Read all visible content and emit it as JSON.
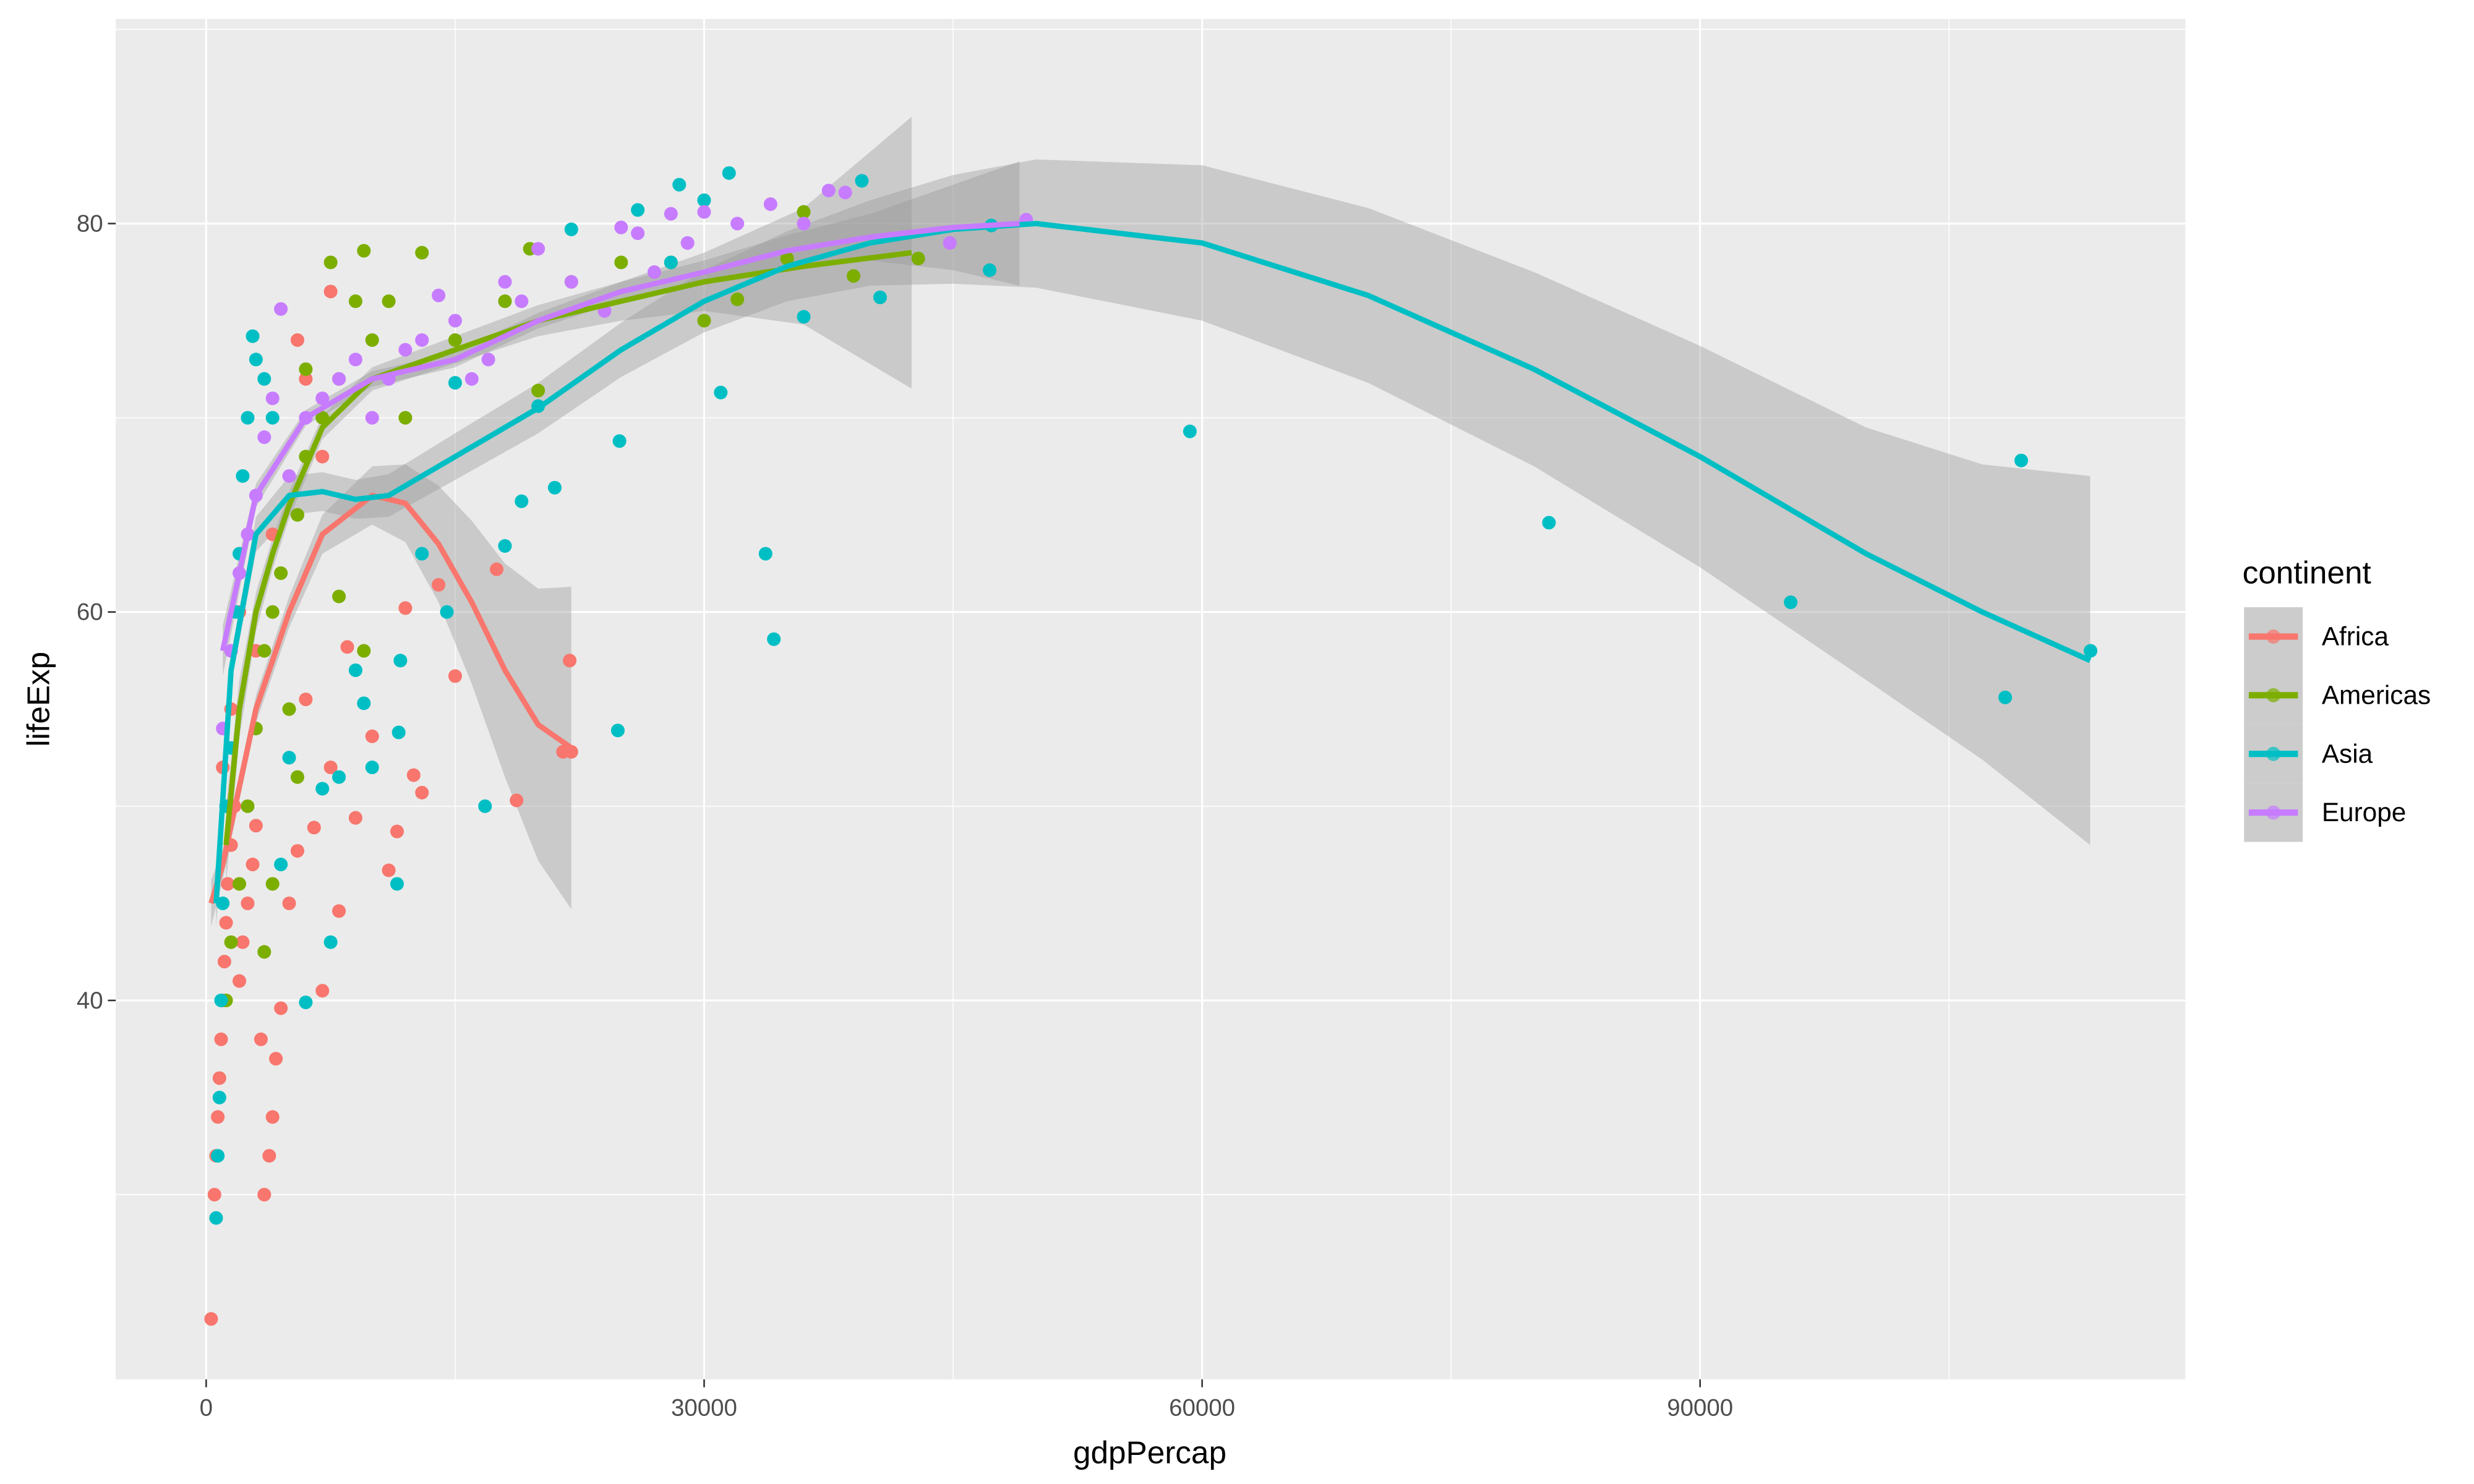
{
  "chart_data": {
    "type": "scatter",
    "title": "",
    "xlabel": "gdpPercap",
    "ylabel": "lifeExp",
    "xlim": [
      -5400,
      119000
    ],
    "ylim": [
      21.5,
      90.5
    ],
    "xticks": [
      0,
      30000,
      60000,
      90000
    ],
    "xtick_labels": [
      "0",
      "30000",
      "60000",
      "90000"
    ],
    "yticks": [
      40,
      60,
      80
    ],
    "ytick_labels": [
      "40",
      "60",
      "80"
    ],
    "grid": true,
    "legend": {
      "title": "continent",
      "placement": "right"
    },
    "series": [
      {
        "name": "Africa",
        "color": "#F8766D",
        "points": [
          [
            300,
            23.6
          ],
          [
            500,
            30
          ],
          [
            600,
            32
          ],
          [
            700,
            34
          ],
          [
            800,
            36
          ],
          [
            900,
            38
          ],
          [
            1000,
            40
          ],
          [
            1100,
            42
          ],
          [
            1200,
            44
          ],
          [
            1300,
            46
          ],
          [
            1500,
            48
          ],
          [
            1700,
            50
          ],
          [
            2000,
            41
          ],
          [
            2200,
            43
          ],
          [
            2500,
            45
          ],
          [
            2800,
            47
          ],
          [
            3000,
            49
          ],
          [
            3300,
            38
          ],
          [
            3500,
            30
          ],
          [
            3800,
            32
          ],
          [
            4000,
            34
          ],
          [
            4200,
            37
          ],
          [
            4500,
            39.6
          ],
          [
            5000,
            45
          ],
          [
            5500,
            47.7
          ],
          [
            6000,
            55.5
          ],
          [
            6500,
            48.9
          ],
          [
            7000,
            40.5
          ],
          [
            7500,
            52
          ],
          [
            8000,
            44.6
          ],
          [
            8500,
            58.2
          ],
          [
            9000,
            49.4
          ],
          [
            10000,
            53.6
          ],
          [
            11000,
            46.7
          ],
          [
            11500,
            48.7
          ],
          [
            12000,
            60.2
          ],
          [
            12500,
            51.6
          ],
          [
            13000,
            50.7
          ],
          [
            14000,
            61.4
          ],
          [
            15000,
            56.7
          ],
          [
            17500,
            62.2
          ],
          [
            18700,
            50.3
          ],
          [
            21500,
            52.8
          ],
          [
            21900,
            57.5
          ],
          [
            22000,
            52.8
          ],
          [
            6000,
            72
          ],
          [
            7500,
            76.5
          ],
          [
            5500,
            74
          ],
          [
            3000,
            58
          ],
          [
            2000,
            60
          ],
          [
            1500,
            55
          ],
          [
            1000,
            52
          ],
          [
            4000,
            64
          ],
          [
            7000,
            68
          ]
        ],
        "smooth": [
          [
            300,
            45
          ],
          [
            1000,
            47
          ],
          [
            2000,
            51
          ],
          [
            3000,
            55
          ],
          [
            5000,
            60
          ],
          [
            7000,
            64
          ],
          [
            10000,
            66
          ],
          [
            12000,
            65.6
          ],
          [
            14000,
            63.5
          ],
          [
            16000,
            60.5
          ],
          [
            18000,
            57
          ],
          [
            20000,
            54.2
          ],
          [
            22000,
            53
          ]
        ],
        "se": [
          1.2,
          0.8,
          0.7,
          0.7,
          0.8,
          1,
          1.5,
          2,
          3,
          4.2,
          5.5,
          7,
          8.3
        ]
      },
      {
        "name": "Americas",
        "color": "#7CAE00",
        "points": [
          [
            1200,
            40
          ],
          [
            1500,
            43
          ],
          [
            2000,
            46
          ],
          [
            2500,
            50
          ],
          [
            3000,
            54
          ],
          [
            3500,
            58
          ],
          [
            4000,
            60
          ],
          [
            4500,
            62
          ],
          [
            5000,
            55
          ],
          [
            5500,
            65
          ],
          [
            6000,
            68
          ],
          [
            7000,
            70
          ],
          [
            8000,
            72
          ],
          [
            9000,
            76
          ],
          [
            9500,
            78.6
          ],
          [
            10000,
            74
          ],
          [
            11000,
            76
          ],
          [
            12000,
            70
          ],
          [
            13000,
            78.5
          ],
          [
            15000,
            74
          ],
          [
            18000,
            76
          ],
          [
            19500,
            78.7
          ],
          [
            20000,
            71.4
          ],
          [
            22000,
            77
          ],
          [
            25000,
            78
          ],
          [
            28000,
            78
          ],
          [
            30000,
            75
          ],
          [
            32000,
            76.1
          ],
          [
            35000,
            78.2
          ],
          [
            36000,
            80.6
          ],
          [
            39000,
            77.3
          ],
          [
            42900,
            78.2
          ],
          [
            8000,
            60.8
          ],
          [
            9500,
            58
          ],
          [
            5500,
            51.5
          ],
          [
            4000,
            46
          ],
          [
            3500,
            42.5
          ],
          [
            6000,
            72.5
          ],
          [
            7500,
            78
          ]
        ],
        "smooth": [
          [
            1200,
            48
          ],
          [
            2000,
            55
          ],
          [
            3000,
            60
          ],
          [
            4000,
            63
          ],
          [
            5000,
            65.5
          ],
          [
            7000,
            69.5
          ],
          [
            10000,
            72
          ],
          [
            15000,
            73.5
          ],
          [
            20000,
            75
          ],
          [
            25000,
            76
          ],
          [
            30000,
            77
          ],
          [
            36000,
            77.8
          ],
          [
            42500,
            78.5
          ]
        ],
        "se": [
          2,
          1.5,
          1,
          0.8,
          0.7,
          0.6,
          0.6,
          0.7,
          0.8,
          1,
          1.5,
          3,
          7
        ]
      },
      {
        "name": "Asia",
        "color": "#00BFC4",
        "points": [
          [
            600,
            28.8
          ],
          [
            700,
            32
          ],
          [
            800,
            35
          ],
          [
            900,
            40
          ],
          [
            1000,
            45
          ],
          [
            1200,
            50
          ],
          [
            1500,
            53
          ],
          [
            1800,
            60
          ],
          [
            2000,
            63
          ],
          [
            2200,
            67
          ],
          [
            2500,
            70
          ],
          [
            2800,
            74.2
          ],
          [
            3000,
            73
          ],
          [
            3500,
            72
          ],
          [
            4000,
            70
          ],
          [
            4500,
            47
          ],
          [
            5000,
            52.5
          ],
          [
            6000,
            39.9
          ],
          [
            7000,
            50.9
          ],
          [
            7500,
            43
          ],
          [
            8000,
            51.5
          ],
          [
            9000,
            57
          ],
          [
            9500,
            55.3
          ],
          [
            10000,
            52
          ],
          [
            11500,
            46
          ],
          [
            11600,
            53.8
          ],
          [
            11700,
            57.5
          ],
          [
            13000,
            63
          ],
          [
            14500,
            60
          ],
          [
            15000,
            71.8
          ],
          [
            16800,
            50
          ],
          [
            18000,
            63.4
          ],
          [
            19000,
            65.7
          ],
          [
            20000,
            70.6
          ],
          [
            21000,
            66.4
          ],
          [
            22000,
            79.7
          ],
          [
            24800,
            53.9
          ],
          [
            24900,
            68.8
          ],
          [
            26000,
            80.7
          ],
          [
            28000,
            78
          ],
          [
            28500,
            82
          ],
          [
            30000,
            81.2
          ],
          [
            31000,
            71.3
          ],
          [
            31500,
            82.6
          ],
          [
            33700,
            63
          ],
          [
            34200,
            58.6
          ],
          [
            36000,
            75.2
          ],
          [
            39500,
            82.2
          ],
          [
            40600,
            76.2
          ],
          [
            47300,
            79.9
          ],
          [
            47200,
            77.6
          ],
          [
            59265,
            69.3
          ],
          [
            80895,
            64.6
          ],
          [
            95458,
            60.5
          ],
          [
            108382,
            55.6
          ],
          [
            109348,
            67.8
          ],
          [
            113523,
            58
          ]
        ],
        "smooth": [
          [
            600,
            45
          ],
          [
            1500,
            57
          ],
          [
            3000,
            64
          ],
          [
            5000,
            66
          ],
          [
            7000,
            66.2
          ],
          [
            9000,
            65.8
          ],
          [
            11000,
            66
          ],
          [
            15000,
            68
          ],
          [
            20000,
            70.5
          ],
          [
            25000,
            73.5
          ],
          [
            30000,
            76
          ],
          [
            35000,
            77.8
          ],
          [
            40000,
            79
          ],
          [
            45000,
            79.7
          ],
          [
            50000,
            80
          ],
          [
            60000,
            79
          ],
          [
            70000,
            76.3
          ],
          [
            80000,
            72.5
          ],
          [
            90000,
            68
          ],
          [
            100000,
            63
          ],
          [
            107000,
            60
          ],
          [
            113500,
            57.5
          ]
        ],
        "se": [
          1.3,
          0.8,
          0.9,
          1,
          1,
          1,
          1.1,
          1.2,
          1.3,
          1.4,
          1.6,
          1.8,
          2.2,
          2.8,
          3.3,
          4,
          4.5,
          5,
          5.7,
          6.5,
          7.6,
          9.5
        ]
      },
      {
        "name": "Europe",
        "color": "#C77CFF",
        "points": [
          [
            1000,
            54
          ],
          [
            1500,
            58
          ],
          [
            2000,
            62
          ],
          [
            2500,
            64
          ],
          [
            3000,
            66
          ],
          [
            3500,
            69
          ],
          [
            4000,
            71
          ],
          [
            4500,
            75.6
          ],
          [
            5000,
            67
          ],
          [
            6000,
            70
          ],
          [
            7000,
            71
          ],
          [
            8000,
            72
          ],
          [
            9000,
            73
          ],
          [
            10000,
            70
          ],
          [
            11000,
            72
          ],
          [
            12000,
            73.5
          ],
          [
            13000,
            74
          ],
          [
            14000,
            76.3
          ],
          [
            15000,
            75
          ],
          [
            16000,
            72
          ],
          [
            17000,
            73
          ],
          [
            18000,
            77
          ],
          [
            19000,
            76
          ],
          [
            20000,
            78.7
          ],
          [
            22000,
            77
          ],
          [
            24000,
            75.5
          ],
          [
            25000,
            79.8
          ],
          [
            26000,
            79.5
          ],
          [
            27000,
            77.5
          ],
          [
            28000,
            80.5
          ],
          [
            29000,
            79
          ],
          [
            30000,
            80.6
          ],
          [
            32000,
            80
          ],
          [
            34000,
            81
          ],
          [
            36000,
            80
          ],
          [
            37500,
            81.7
          ],
          [
            38500,
            81.6
          ],
          [
            44800,
            79
          ],
          [
            49400,
            80.2
          ]
        ],
        "smooth": [
          [
            1000,
            58
          ],
          [
            3000,
            66
          ],
          [
            6000,
            70
          ],
          [
            10000,
            72
          ],
          [
            15000,
            73
          ],
          [
            20000,
            75
          ],
          [
            25000,
            76.5
          ],
          [
            30000,
            77.5
          ],
          [
            35000,
            78.6
          ],
          [
            40000,
            79.3
          ],
          [
            45000,
            79.8
          ],
          [
            49000,
            80
          ]
        ],
        "se": [
          1.3,
          0.6,
          0.4,
          0.4,
          0.4,
          0.4,
          0.5,
          0.6,
          0.8,
          1.2,
          2.2,
          3.2
        ]
      }
    ]
  }
}
